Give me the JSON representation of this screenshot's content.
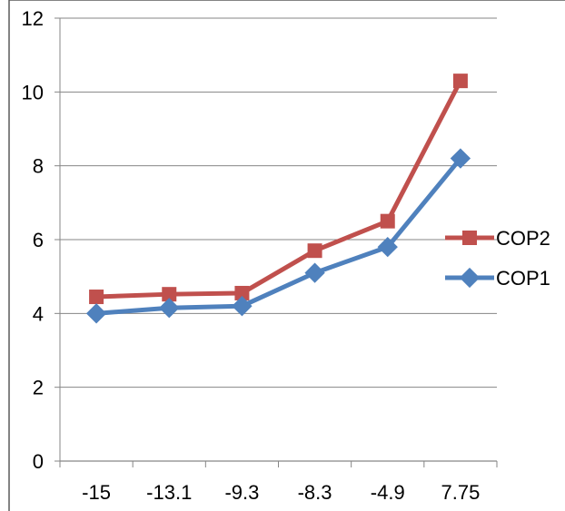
{
  "chart_data": {
    "type": "line",
    "title": "",
    "xlabel": "",
    "ylabel": "",
    "categories": [
      "-15",
      "-13.1",
      "-9.3",
      "-8.3",
      "-4.9",
      "7.75"
    ],
    "ylim": [
      0,
      12
    ],
    "y_ticks": [
      "0",
      "2",
      "4",
      "6",
      "8",
      "10",
      "12"
    ],
    "grid": "horizontal",
    "legend_position": "right",
    "series": [
      {
        "name": "COP2",
        "values": [
          4.45,
          4.52,
          4.55,
          5.7,
          6.5,
          10.3
        ],
        "color": "#c0504d",
        "marker": "square"
      },
      {
        "name": "COP1",
        "values": [
          4.0,
          4.15,
          4.2,
          5.1,
          5.8,
          8.2
        ],
        "color": "#4f81bd",
        "marker": "diamond"
      }
    ]
  }
}
